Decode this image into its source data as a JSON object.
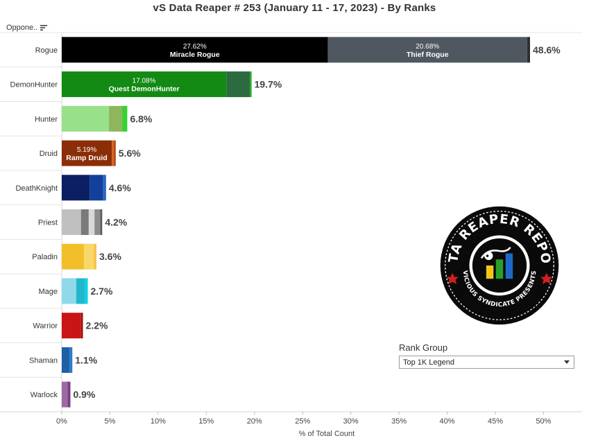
{
  "title": "vS Data Reaper #  253 (January 11 - 17, 2023) - By Ranks",
  "sort_header": {
    "label": "Oppone.."
  },
  "rank_group": {
    "title": "Rank Group",
    "selected": "Top 1K Legend"
  },
  "chart_data": {
    "type": "bar",
    "orientation": "horizontal",
    "stacked": true,
    "xlabel": "% of Total Count",
    "xlim": [
      0,
      54
    ],
    "xticks": [
      0,
      5,
      10,
      15,
      20,
      25,
      30,
      35,
      40,
      45,
      50
    ],
    "xtick_labels": [
      "0%",
      "5%",
      "10%",
      "15%",
      "20%",
      "25%",
      "30%",
      "35%",
      "40%",
      "45%",
      "50%"
    ],
    "grid": false,
    "categories": [
      {
        "name": "Rogue",
        "total_label": "48.6%",
        "segments": [
          {
            "value": 27.62,
            "color": "#000000",
            "pct": "27.62%",
            "label": "Miracle Rogue"
          },
          {
            "value": 20.68,
            "color": "#4f5760",
            "pct": "20.68%",
            "label": "Thief Rogue"
          },
          {
            "value": 0.3,
            "color": "#2e2e2e"
          }
        ]
      },
      {
        "name": "DemonHunter",
        "total_label": "19.7%",
        "segments": [
          {
            "value": 17.08,
            "color": "#138a13",
            "pct": "17.08%",
            "label": "Quest DemonHunter"
          },
          {
            "value": 2.45,
            "color": "#2c6a3f"
          },
          {
            "value": 0.17,
            "color": "#1fa81f"
          }
        ]
      },
      {
        "name": "Hunter",
        "total_label": "6.8%",
        "segments": [
          {
            "value": 4.9,
            "color": "#99e08a"
          },
          {
            "value": 1.4,
            "color": "#8eb65a"
          },
          {
            "value": 0.5,
            "color": "#32d232"
          }
        ]
      },
      {
        "name": "Druid",
        "total_label": "5.6%",
        "segments": [
          {
            "value": 5.19,
            "color": "#8b2e07",
            "pct": "5.19%",
            "label": "Ramp Druid"
          },
          {
            "value": 0.25,
            "color": "#d4631f"
          },
          {
            "value": 0.16,
            "color": "#b04010"
          }
        ]
      },
      {
        "name": "DeathKnight",
        "total_label": "4.6%",
        "segments": [
          {
            "value": 2.9,
            "color": "#0d1f63"
          },
          {
            "value": 1.4,
            "color": "#12409a"
          },
          {
            "value": 0.3,
            "color": "#2a66c4"
          }
        ]
      },
      {
        "name": "Priest",
        "total_label": "4.2%",
        "segments": [
          {
            "value": 2.0,
            "color": "#c0c0c0"
          },
          {
            "value": 0.8,
            "color": "#7a7a7a"
          },
          {
            "value": 0.6,
            "color": "#d8d8d8"
          },
          {
            "value": 0.6,
            "color": "#8c8c8c"
          },
          {
            "value": 0.2,
            "color": "#5a5a5a"
          }
        ]
      },
      {
        "name": "Paladin",
        "total_label": "3.6%",
        "segments": [
          {
            "value": 2.3,
            "color": "#f2bf2a"
          },
          {
            "value": 1.0,
            "color": "#f9d86a"
          },
          {
            "value": 0.3,
            "color": "#f5c64a"
          }
        ]
      },
      {
        "name": "Mage",
        "total_label": "2.7%",
        "segments": [
          {
            "value": 1.5,
            "color": "#8fd9ea"
          },
          {
            "value": 0.9,
            "color": "#24b6cc"
          },
          {
            "value": 0.3,
            "color": "#00d2e6"
          }
        ]
      },
      {
        "name": "Warrior",
        "total_label": "2.2%",
        "segments": [
          {
            "value": 2.0,
            "color": "#c91515"
          },
          {
            "value": 0.2,
            "color": "#a01010"
          }
        ]
      },
      {
        "name": "Shaman",
        "total_label": "1.1%",
        "segments": [
          {
            "value": 0.8,
            "color": "#1f5fa6"
          },
          {
            "value": 0.3,
            "color": "#2b79c8"
          }
        ]
      },
      {
        "name": "Warlock",
        "total_label": "0.9%",
        "segments": [
          {
            "value": 0.6,
            "color": "#9d6aa2"
          },
          {
            "value": 0.3,
            "color": "#7a3e8a"
          }
        ]
      }
    ]
  },
  "logo": {
    "text_top": "DATA REAPER REPORT",
    "text_bottom": "VICIOUS SYNDICATE PRESENTS",
    "colors": {
      "ring": "#0a0a0a",
      "text": "#ffffff",
      "stars": "#d12020",
      "bar1": "#f2c618",
      "bar2": "#2aa02a",
      "bar3": "#1f68c8"
    }
  }
}
